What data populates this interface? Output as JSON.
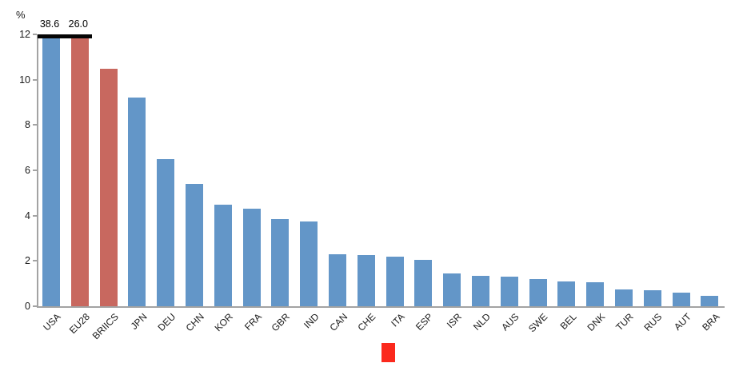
{
  "chart_data": {
    "type": "bar",
    "title": "",
    "xlabel": "",
    "ylabel": "%",
    "ylim": [
      0,
      12
    ],
    "yticks": [
      0,
      2,
      4,
      6,
      8,
      10,
      12
    ],
    "grid": false,
    "legend_position": "bottom-center",
    "categories": [
      "USA",
      "EU28",
      "BRIICS",
      "JPN",
      "DEU",
      "CHN",
      "KOR",
      "FRA",
      "GBR",
      "IND",
      "CAN",
      "CHE",
      "ITA",
      "ESP",
      "ISR",
      "NLD",
      "AUS",
      "SWE",
      "BEL",
      "DNK",
      "TUR",
      "RUS",
      "AUT",
      "BRA"
    ],
    "values": [
      38.6,
      26.0,
      10.5,
      9.2,
      6.5,
      5.4,
      4.5,
      4.3,
      3.85,
      3.75,
      2.3,
      2.25,
      2.2,
      2.05,
      1.45,
      1.35,
      1.3,
      1.2,
      1.1,
      1.05,
      0.75,
      0.7,
      0.6,
      0.45
    ],
    "highlighted_categories": [
      "EU28",
      "BRIICS"
    ],
    "clipped_bar_annotations": {
      "USA": "38.6",
      "EU28": "26.0"
    },
    "colors": {
      "bar_default": "#6396c8",
      "bar_highlight": "#c8685f",
      "clip_cap": "#050505",
      "axis": "#a3a3a3",
      "text": "#1a1a1a",
      "legend_marker": "#fb291d"
    },
    "icons": {
      "legend_marker": "red-square-icon"
    }
  }
}
